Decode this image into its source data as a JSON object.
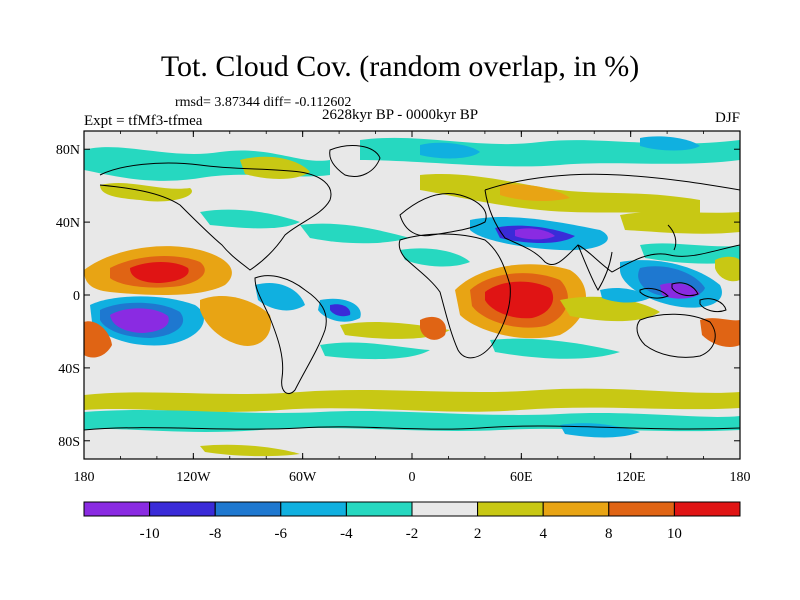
{
  "title": "Tot. Cloud Cov. (random overlap, in %)",
  "stats": "rmsd= 3.87344 diff= -0.112602",
  "experiment": "Expt = tfMf3-tfmea",
  "period": "2628kyr BP - 0000kyr BP",
  "season": "DJF",
  "axes": {
    "lon_ticks": [
      "180",
      "120W",
      "60W",
      "0",
      "60E",
      "120E",
      "180"
    ],
    "lat_ticks": [
      "80N",
      "40N",
      "0",
      "40S",
      "80S"
    ]
  },
  "colorbar": {
    "labels": [
      "-10",
      "-8",
      "-6",
      "-4",
      "-2",
      "2",
      "4",
      "8",
      "10"
    ],
    "colors": [
      "#8a2be2",
      "#3a2bd8",
      "#1e78d0",
      "#10b0e0",
      "#26d8c0",
      "#e8e8e8",
      "#c8c814",
      "#e8a414",
      "#e06414",
      "#e01414"
    ]
  }
}
